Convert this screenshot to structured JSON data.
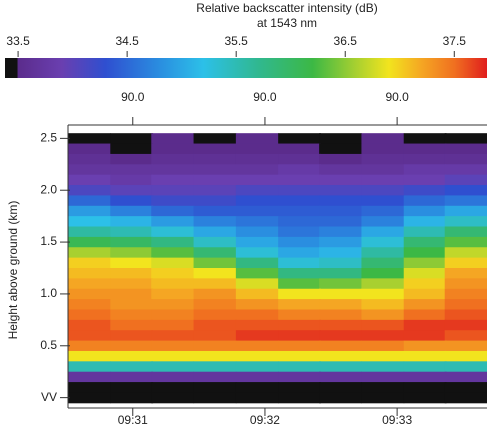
{
  "chart_data": {
    "type": "heatmap",
    "colorbar_title": "Relative backscatter intensity (dB)",
    "colorbar_subtitle": "at 1543 nm",
    "clim": [
      33.38,
      37.8
    ],
    "cticks": [
      33.5,
      34.5,
      35.5,
      36.5,
      37.5
    ],
    "colorscale": [
      [
        33.38,
        "#111111"
      ],
      [
        33.49,
        "#111111"
      ],
      [
        33.5,
        "#5b2c8c"
      ],
      [
        33.9,
        "#6a3fb0"
      ],
      [
        34.3,
        "#2f4fd0"
      ],
      [
        34.8,
        "#2a8ee0"
      ],
      [
        35.2,
        "#2cc0e8"
      ],
      [
        35.7,
        "#30b890"
      ],
      [
        36.2,
        "#3cb845"
      ],
      [
        36.6,
        "#a8d030"
      ],
      [
        36.9,
        "#f2e41e"
      ],
      [
        37.2,
        "#f5a623"
      ],
      [
        37.5,
        "#f07020"
      ],
      [
        37.8,
        "#e01e1e"
      ]
    ],
    "ylabel": "Height above ground (km)",
    "x": [
      30.67,
      30.99,
      31.3,
      31.62,
      31.94,
      32.26,
      32.57,
      32.89,
      33.21,
      33.52
    ],
    "y": [
      2.5,
      2.4,
      2.3,
      2.2,
      2.1,
      2.0,
      1.9,
      1.8,
      1.7,
      1.6,
      1.5,
      1.4,
      1.3,
      1.2,
      1.1,
      1.0,
      0.9,
      0.8,
      0.7,
      0.6,
      0.5,
      0.4,
      0.3,
      0.2,
      0.1,
      0.0
    ],
    "z": [
      [
        33.4,
        33.4,
        33.5,
        33.4,
        33.5,
        33.4,
        33.4,
        33.5,
        33.4,
        33.4
      ],
      [
        33.5,
        33.4,
        33.5,
        33.5,
        33.5,
        33.5,
        33.4,
        33.5,
        33.5,
        33.5
      ],
      [
        33.6,
        33.5,
        33.6,
        33.6,
        33.6,
        33.6,
        33.5,
        33.6,
        33.6,
        33.6
      ],
      [
        33.7,
        33.7,
        33.7,
        33.7,
        33.7,
        33.8,
        33.7,
        33.7,
        33.8,
        33.8
      ],
      [
        33.9,
        33.8,
        33.9,
        33.9,
        33.9,
        33.9,
        33.9,
        33.9,
        33.9,
        34.0
      ],
      [
        34.1,
        34.0,
        34.0,
        34.0,
        34.1,
        34.1,
        34.1,
        34.1,
        34.2,
        34.3
      ],
      [
        34.5,
        34.3,
        34.2,
        34.2,
        34.3,
        34.3,
        34.3,
        34.3,
        34.5,
        34.6
      ],
      [
        34.9,
        34.7,
        34.5,
        34.4,
        34.4,
        34.4,
        34.4,
        34.5,
        34.8,
        35.0
      ],
      [
        35.2,
        35.1,
        34.9,
        34.7,
        34.6,
        34.5,
        34.5,
        34.7,
        35.1,
        35.4
      ],
      [
        35.6,
        35.5,
        35.3,
        35.0,
        34.8,
        34.6,
        34.7,
        35.0,
        35.5,
        35.9
      ],
      [
        36.1,
        36.0,
        35.8,
        35.4,
        35.0,
        34.8,
        34.9,
        35.3,
        35.9,
        36.3
      ],
      [
        36.6,
        36.5,
        36.3,
        35.9,
        35.3,
        35.0,
        35.1,
        35.6,
        36.2,
        36.7
      ],
      [
        37.0,
        36.9,
        36.8,
        36.4,
        35.8,
        35.3,
        35.4,
        35.9,
        36.5,
        37.0
      ],
      [
        37.1,
        37.1,
        37.0,
        36.9,
        36.3,
        35.8,
        35.8,
        36.2,
        36.8,
        37.2
      ],
      [
        37.2,
        37.2,
        37.1,
        37.1,
        36.8,
        36.3,
        36.4,
        36.6,
        37.0,
        37.3
      ],
      [
        37.3,
        37.3,
        37.2,
        37.3,
        37.1,
        36.9,
        36.9,
        36.9,
        37.1,
        37.4
      ],
      [
        37.4,
        37.3,
        37.3,
        37.4,
        37.3,
        37.2,
        37.2,
        37.1,
        37.3,
        37.5
      ],
      [
        37.5,
        37.4,
        37.4,
        37.5,
        37.5,
        37.4,
        37.4,
        37.3,
        37.5,
        37.6
      ],
      [
        37.6,
        37.5,
        37.5,
        37.6,
        37.6,
        37.6,
        37.6,
        37.6,
        37.7,
        37.7
      ],
      [
        37.6,
        37.6,
        37.6,
        37.6,
        37.7,
        37.7,
        37.7,
        37.7,
        37.7,
        37.6
      ],
      [
        37.4,
        37.4,
        37.4,
        37.4,
        37.4,
        37.4,
        37.4,
        37.4,
        37.3,
        37.3
      ],
      [
        36.9,
        36.9,
        36.9,
        36.9,
        36.9,
        36.9,
        36.9,
        36.9,
        36.9,
        36.9
      ],
      [
        35.5,
        35.5,
        35.5,
        35.5,
        35.5,
        35.5,
        35.5,
        35.5,
        35.5,
        35.5
      ],
      [
        33.7,
        33.7,
        33.7,
        33.7,
        33.7,
        33.7,
        33.7,
        33.7,
        33.7,
        33.7
      ],
      [
        33.4,
        33.4,
        33.4,
        33.4,
        33.4,
        33.4,
        33.4,
        33.4,
        33.4,
        33.4
      ],
      [
        33.4,
        33.4,
        33.4,
        33.4,
        33.4,
        33.4,
        33.4,
        33.4,
        33.4,
        33.4
      ]
    ],
    "xlim": [
      30.51,
      33.68
    ],
    "xticks": [
      {
        "value": 31,
        "label": "09:31"
      },
      {
        "value": 32,
        "label": "09:32"
      },
      {
        "value": 33,
        "label": "09:33"
      }
    ],
    "x2ticks": [
      {
        "value": 31,
        "label": "90.0"
      },
      {
        "value": 32,
        "label": "90.0"
      },
      {
        "value": 33,
        "label": "90.0"
      }
    ],
    "ylim": [
      -0.1,
      2.6
    ],
    "yticks": [
      {
        "value": 0,
        "label": "VV"
      },
      0.5,
      {
        "value": 1,
        "label": "1.0"
      },
      1.5,
      {
        "value": 2,
        "label": "2.0"
      },
      2.5
    ]
  }
}
